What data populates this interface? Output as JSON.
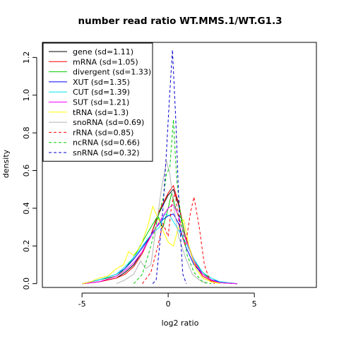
{
  "chart_data": {
    "type": "line",
    "title": "number read ratio WT.MMS.1/WT.G1.3",
    "xlabel": "log2 ratio",
    "ylabel": "density",
    "xlim": [
      -7.3,
      8.6
    ],
    "ylim": [
      -0.02,
      1.28
    ],
    "x_ticks": [
      -5,
      0,
      5
    ],
    "x_tick_labels": [
      "-5",
      "0",
      "5"
    ],
    "y_ticks": [
      0.0,
      0.2,
      0.4,
      0.6,
      0.8,
      1.0,
      1.2
    ],
    "y_tick_labels": [
      "0.0",
      "0.2",
      "0.4",
      "0.6",
      "0.8",
      "1.0",
      "1.2"
    ],
    "grid": false,
    "legend_position": "top-left",
    "series": [
      {
        "name": "gene (sd=1.11)",
        "color": "#000000",
        "dash": "solid",
        "points": [
          [
            -5,
            0
          ],
          [
            -4,
            0.01
          ],
          [
            -3,
            0.03
          ],
          [
            -2.5,
            0.06
          ],
          [
            -2,
            0.1
          ],
          [
            -1.5,
            0.17
          ],
          [
            -1,
            0.26
          ],
          [
            -0.5,
            0.38
          ],
          [
            0,
            0.47
          ],
          [
            0.3,
            0.5
          ],
          [
            0.6,
            0.42
          ],
          [
            1,
            0.25
          ],
          [
            1.5,
            0.12
          ],
          [
            2,
            0.05
          ],
          [
            2.5,
            0.02
          ],
          [
            3,
            0.005
          ],
          [
            4,
            0
          ]
        ]
      },
      {
        "name": "mRNA (sd=1.05)",
        "color": "#ff0000",
        "dash": "solid",
        "points": [
          [
            -5,
            0
          ],
          [
            -4,
            0.01
          ],
          [
            -3,
            0.03
          ],
          [
            -2.5,
            0.05
          ],
          [
            -2,
            0.09
          ],
          [
            -1.5,
            0.16
          ],
          [
            -1,
            0.26
          ],
          [
            -0.5,
            0.39
          ],
          [
            0,
            0.48
          ],
          [
            0.3,
            0.52
          ],
          [
            0.6,
            0.43
          ],
          [
            1,
            0.25
          ],
          [
            1.5,
            0.11
          ],
          [
            2,
            0.04
          ],
          [
            2.5,
            0.015
          ],
          [
            3,
            0.005
          ],
          [
            4,
            0
          ]
        ]
      },
      {
        "name": "divergent (sd=1.33)",
        "color": "#00cd00",
        "dash": "solid",
        "points": [
          [
            -5,
            0
          ],
          [
            -4,
            0.02
          ],
          [
            -3,
            0.04
          ],
          [
            -2.5,
            0.08
          ],
          [
            -2,
            0.14
          ],
          [
            -1.5,
            0.22
          ],
          [
            -1,
            0.3
          ],
          [
            -0.6,
            0.36
          ],
          [
            -0.3,
            0.3
          ],
          [
            0,
            0.4
          ],
          [
            0.2,
            0.48
          ],
          [
            0.5,
            0.38
          ],
          [
            0.8,
            0.34
          ],
          [
            1,
            0.24
          ],
          [
            1.5,
            0.12
          ],
          [
            2,
            0.06
          ],
          [
            2.5,
            0.02
          ],
          [
            3,
            0.01
          ],
          [
            4,
            0
          ]
        ]
      },
      {
        "name": "XUT (sd=1.35)",
        "color": "#0000ff",
        "dash": "solid",
        "points": [
          [
            -5,
            0
          ],
          [
            -4.5,
            0.01
          ],
          [
            -4,
            0.02
          ],
          [
            -3,
            0.05
          ],
          [
            -2.5,
            0.08
          ],
          [
            -2,
            0.13
          ],
          [
            -1.5,
            0.19
          ],
          [
            -1,
            0.26
          ],
          [
            -0.6,
            0.31
          ],
          [
            -0.3,
            0.34
          ],
          [
            0,
            0.36
          ],
          [
            0.3,
            0.37
          ],
          [
            0.6,
            0.32
          ],
          [
            1,
            0.2
          ],
          [
            1.5,
            0.1
          ],
          [
            2,
            0.05
          ],
          [
            2.5,
            0.02
          ],
          [
            3,
            0.01
          ],
          [
            4,
            0
          ]
        ]
      },
      {
        "name": "CUT (sd=1.39)",
        "color": "#00e5ee",
        "dash": "solid",
        "points": [
          [
            -5,
            0
          ],
          [
            -4,
            0.02
          ],
          [
            -3,
            0.05
          ],
          [
            -2.5,
            0.09
          ],
          [
            -2,
            0.14
          ],
          [
            -1.5,
            0.2
          ],
          [
            -1,
            0.26
          ],
          [
            -0.5,
            0.3
          ],
          [
            -0.2,
            0.37
          ],
          [
            0.1,
            0.36
          ],
          [
            0.5,
            0.3
          ],
          [
            1,
            0.22
          ],
          [
            1.5,
            0.13
          ],
          [
            2,
            0.06
          ],
          [
            2.5,
            0.03
          ],
          [
            3,
            0.01
          ],
          [
            4,
            0
          ]
        ]
      },
      {
        "name": "SUT (sd=1.21)",
        "color": "#ff00ff",
        "dash": "solid",
        "points": [
          [
            -5,
            0
          ],
          [
            -4,
            0.01
          ],
          [
            -3,
            0.04
          ],
          [
            -2.5,
            0.07
          ],
          [
            -2,
            0.11
          ],
          [
            -1.5,
            0.17
          ],
          [
            -1,
            0.25
          ],
          [
            -0.5,
            0.33
          ],
          [
            0,
            0.4
          ],
          [
            0.3,
            0.42
          ],
          [
            0.6,
            0.36
          ],
          [
            1,
            0.24
          ],
          [
            1.5,
            0.12
          ],
          [
            2,
            0.05
          ],
          [
            2.5,
            0.02
          ],
          [
            3,
            0.005
          ],
          [
            4,
            0
          ]
        ]
      },
      {
        "name": "tRNA (sd=1.3)",
        "color": "#ffff00",
        "dash": "solid",
        "points": [
          [
            -5,
            0
          ],
          [
            -4.5,
            0.01
          ],
          [
            -4,
            0.03
          ],
          [
            -3.5,
            0.04
          ],
          [
            -3,
            0.08
          ],
          [
            -2.6,
            0.1
          ],
          [
            -2.3,
            0.17
          ],
          [
            -2,
            0.15
          ],
          [
            -1.6,
            0.2
          ],
          [
            -1.2,
            0.3
          ],
          [
            -0.9,
            0.41
          ],
          [
            -0.6,
            0.35
          ],
          [
            -0.3,
            0.28
          ],
          [
            0,
            0.22
          ],
          [
            0.3,
            0.2
          ],
          [
            0.6,
            0.3
          ],
          [
            0.9,
            0.34
          ],
          [
            1.2,
            0.2
          ],
          [
            1.6,
            0.08
          ],
          [
            2,
            0.03
          ],
          [
            2.5,
            0.01
          ],
          [
            3,
            0
          ]
        ]
      },
      {
        "name": "snoRNA (sd=0.69)",
        "color": "#b3b3b3",
        "dash": "solid",
        "points": [
          [
            -3,
            0
          ],
          [
            -2.5,
            0.02
          ],
          [
            -2,
            0.05
          ],
          [
            -1.6,
            0.12
          ],
          [
            -1.3,
            0.08
          ],
          [
            -1,
            0.1
          ],
          [
            -0.7,
            0.3
          ],
          [
            -0.4,
            0.5
          ],
          [
            -0.1,
            0.65
          ],
          [
            0.1,
            0.58
          ],
          [
            0.3,
            0.42
          ],
          [
            0.6,
            0.25
          ],
          [
            1,
            0.14
          ],
          [
            1.4,
            0.05
          ],
          [
            1.8,
            0.02
          ],
          [
            2.2,
            0
          ]
        ]
      },
      {
        "name": "rRNA (sd=0.85)",
        "color": "#ff0000",
        "dash": "dashed",
        "points": [
          [
            -1.5,
            0
          ],
          [
            -1,
            0.06
          ],
          [
            -0.6,
            0.2
          ],
          [
            -0.3,
            0.32
          ],
          [
            0,
            0.25
          ],
          [
            0.2,
            0.42
          ],
          [
            0.4,
            0.48
          ],
          [
            0.7,
            0.28
          ],
          [
            1,
            0.2
          ],
          [
            1.3,
            0.38
          ],
          [
            1.5,
            0.46
          ],
          [
            1.8,
            0.3
          ],
          [
            2.1,
            0.1
          ],
          [
            2.4,
            0.02
          ],
          [
            2.7,
            0
          ]
        ]
      },
      {
        "name": "ncRNA (sd=0.66)",
        "color": "#00cd00",
        "dash": "dashed",
        "points": [
          [
            -2,
            0
          ],
          [
            -1.5,
            0.05
          ],
          [
            -1,
            0.2
          ],
          [
            -0.6,
            0.35
          ],
          [
            -0.3,
            0.45
          ],
          [
            -0.1,
            0.58
          ],
          [
            0.1,
            0.62
          ],
          [
            0.3,
            0.87
          ],
          [
            0.5,
            0.55
          ],
          [
            0.8,
            0.3
          ],
          [
            1.1,
            0.15
          ],
          [
            1.5,
            0.06
          ],
          [
            2,
            0.01
          ],
          [
            2.5,
            0
          ]
        ]
      },
      {
        "name": "snRNA (sd=0.32)",
        "color": "#0000cd",
        "dash": "dashed",
        "points": [
          [
            -0.9,
            0
          ],
          [
            -0.7,
            0.02
          ],
          [
            -0.5,
            0.2
          ],
          [
            -0.3,
            0.4
          ],
          [
            -0.1,
            0.7
          ],
          [
            0.05,
            0.95
          ],
          [
            0.25,
            1.24
          ],
          [
            0.45,
            0.85
          ],
          [
            0.65,
            0.35
          ],
          [
            0.85,
            0.05
          ],
          [
            1.05,
            0
          ]
        ]
      }
    ]
  }
}
